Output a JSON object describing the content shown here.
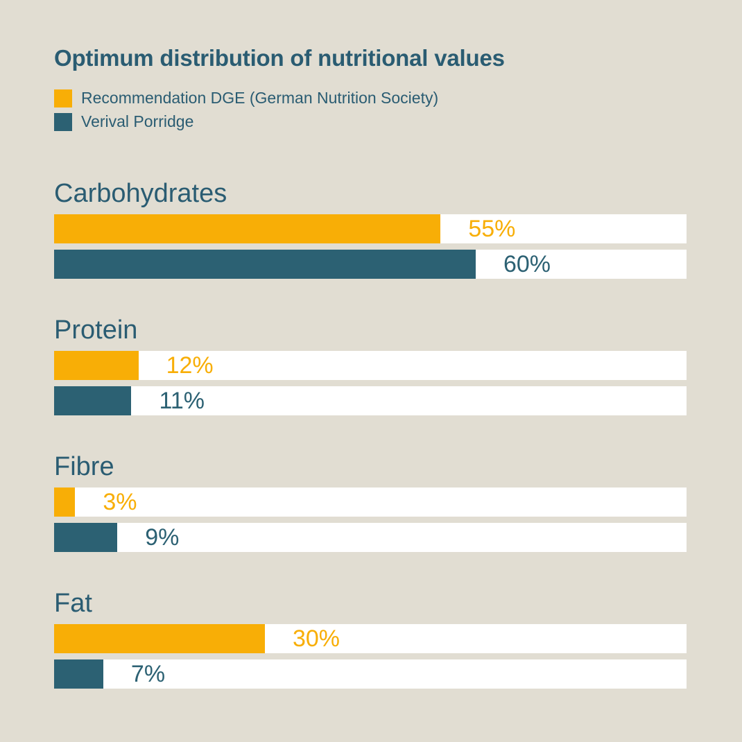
{
  "colors": {
    "background": "#e1ddd2",
    "heading_text": "#2a5c72",
    "orange": "#f8ae06",
    "teal": "#2c6173",
    "bar_track": "#ffffff"
  },
  "chart_data": {
    "type": "bar",
    "orientation": "horizontal",
    "title": "Optimum distribution of nutritional values",
    "categories": [
      "Carbohydrates",
      "Protein",
      "Fibre",
      "Fat"
    ],
    "series": [
      {
        "name": "Recommendation DGE (German Nutrition Society)",
        "color": "#f8ae06",
        "values": [
          55,
          12,
          3,
          30
        ],
        "display": [
          "55%",
          "12%",
          "3%",
          "30%"
        ]
      },
      {
        "name": "Verival Porridge",
        "color": "#2c6173",
        "values": [
          60,
          11,
          9,
          7
        ],
        "display": [
          "60%",
          "11%",
          "9%",
          "7%"
        ]
      }
    ],
    "value_suffix": "%",
    "axis_max": 90,
    "grid": false,
    "legend_position": "top-left"
  }
}
